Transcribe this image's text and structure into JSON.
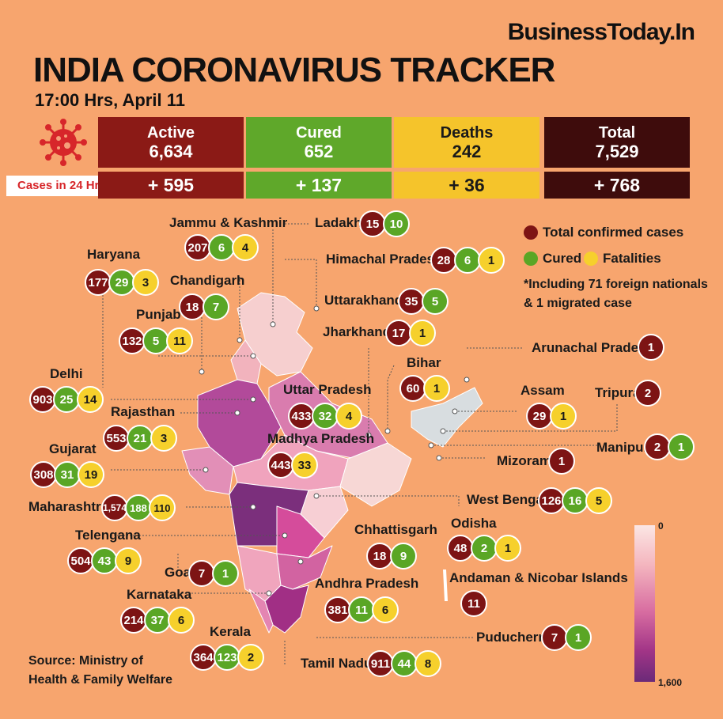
{
  "brand": "BusinessToday.In",
  "title": "INDIA CORONAVIRUS TRACKER",
  "subtitle": "17:00 Hrs, April 11",
  "summary": {
    "active": {
      "label": "Active",
      "value": "6,634",
      "delta": "+ 595",
      "color": "#8b1a16"
    },
    "cured": {
      "label": "Cured",
      "value": "652",
      "delta": "+ 137",
      "color": "#5fa82a"
    },
    "deaths": {
      "label": "Deaths",
      "value": "242",
      "delta": "+ 36",
      "color": "#f5c42b"
    },
    "total": {
      "label": "Total",
      "value": "7,529",
      "delta": "+ 768",
      "color": "#3e0c0c"
    }
  },
  "cases_24h_label": "Cases in 24 Hrs",
  "legend": {
    "total": "Total confirmed cases",
    "cured": "Cured",
    "fatalities": "Fatalities",
    "note_line1": "*Including 71 foreign nationals",
    "note_line2": "& 1 migrated case"
  },
  "scale": {
    "min": "0",
    "max": "1,600"
  },
  "source_line1": "Source: Ministry of",
  "source_line2": "Health & Family Welfare",
  "states": [
    {
      "name": "Jammu & Kashmir",
      "total": "207",
      "cured": "6",
      "fatal": "4"
    },
    {
      "name": "Ladakh",
      "total": "15",
      "cured": "10"
    },
    {
      "name": "Himachal Pradesh",
      "total": "28",
      "cured": "6",
      "fatal": "1"
    },
    {
      "name": "Haryana",
      "total": "177",
      "cured": "29",
      "fatal": "3"
    },
    {
      "name": "Chandigarh",
      "total": "18",
      "cured": "7"
    },
    {
      "name": "Uttarakhand",
      "total": "35",
      "cured": "5"
    },
    {
      "name": "Punjab",
      "total": "132",
      "cured": "5",
      "fatal": "11"
    },
    {
      "name": "Jharkhand",
      "total": "17",
      "fatal": "1"
    },
    {
      "name": "Arunachal Pradesh",
      "total": "1"
    },
    {
      "name": "Bihar",
      "total": "60",
      "fatal": "1"
    },
    {
      "name": "Delhi",
      "total": "903",
      "cured": "25",
      "fatal": "14"
    },
    {
      "name": "Uttar Pradesh",
      "total": "433",
      "cured": "32",
      "fatal": "4"
    },
    {
      "name": "Assam",
      "total": "29",
      "fatal": "1"
    },
    {
      "name": "Tripura",
      "total": "2"
    },
    {
      "name": "Rajasthan",
      "total": "553",
      "cured": "21",
      "fatal": "3"
    },
    {
      "name": "Madhya Pradesh",
      "total": "443",
      "fatal": "33"
    },
    {
      "name": "Manipur",
      "total": "2",
      "cured": "1"
    },
    {
      "name": "Gujarat",
      "total": "308",
      "cured": "31",
      "fatal": "19"
    },
    {
      "name": "Mizoram",
      "total": "1"
    },
    {
      "name": "West Bengal",
      "total": "126",
      "cured": "16",
      "fatal": "5"
    },
    {
      "name": "Maharashtra",
      "total": "1,574",
      "cured": "188",
      "fatal": "110"
    },
    {
      "name": "Odisha",
      "total": "48",
      "cured": "2",
      "fatal": "1"
    },
    {
      "name": "Telengana",
      "total": "504",
      "cured": "43",
      "fatal": "9"
    },
    {
      "name": "Chhattisgarh",
      "total": "18",
      "cured": "9"
    },
    {
      "name": "Goa",
      "total": "7",
      "cured": "1"
    },
    {
      "name": "Andaman & Nicobar Islands",
      "total": "11"
    },
    {
      "name": "Karnataka",
      "total": "214",
      "cured": "37",
      "fatal": "6"
    },
    {
      "name": "Andhra Pradesh",
      "total": "381",
      "cured": "11",
      "fatal": "6"
    },
    {
      "name": "Kerala",
      "total": "364",
      "cured": "123",
      "fatal": "2"
    },
    {
      "name": "Puducherry",
      "total": "7",
      "cured": "1"
    },
    {
      "name": "Tamil Nadu",
      "total": "911",
      "cured": "44",
      "fatal": "8"
    }
  ]
}
